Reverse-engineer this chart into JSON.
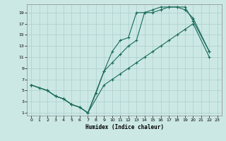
{
  "xlabel": "Humidex (Indice chaleur)",
  "bg_color": "#cce8e5",
  "grid_color": "#aacfcc",
  "line_color": "#1a6b5a",
  "xlim": [
    -0.5,
    23.5
  ],
  "ylim": [
    0.5,
    20.5
  ],
  "xticks": [
    0,
    1,
    2,
    3,
    4,
    5,
    6,
    7,
    8,
    9,
    10,
    11,
    12,
    13,
    14,
    15,
    16,
    17,
    18,
    19,
    20,
    21,
    22,
    23
  ],
  "yticks": [
    1,
    3,
    5,
    7,
    9,
    11,
    13,
    15,
    17,
    19
  ],
  "line1_x": [
    0,
    1,
    2,
    3,
    4,
    5,
    6,
    7,
    8,
    9,
    10,
    11,
    12,
    13,
    14,
    15,
    16,
    17,
    18,
    19,
    20,
    22
  ],
  "line1_y": [
    6,
    5.5,
    5,
    4,
    3.5,
    2.5,
    2,
    1,
    4.5,
    8.5,
    12,
    14,
    14.5,
    19,
    19,
    19.5,
    20,
    20,
    20,
    19.5,
    18,
    12
  ],
  "line2_x": [
    0,
    2,
    3,
    4,
    5,
    6,
    7,
    9,
    10,
    11,
    12,
    13,
    14,
    15,
    16,
    17,
    18,
    19,
    20,
    22
  ],
  "line2_y": [
    6,
    5,
    4,
    3.5,
    2.5,
    2,
    1,
    8.5,
    10,
    11.5,
    13,
    14,
    19,
    19,
    19.5,
    20,
    20,
    20,
    17.5,
    12
  ],
  "line3_x": [
    0,
    2,
    3,
    4,
    5,
    6,
    7,
    9,
    10,
    11,
    12,
    13,
    14,
    15,
    16,
    17,
    18,
    19,
    20,
    22
  ],
  "line3_y": [
    6,
    5,
    4,
    3.5,
    2.5,
    2,
    1,
    6,
    7,
    8,
    9,
    10,
    11,
    12,
    13,
    14,
    15,
    16,
    17,
    11
  ]
}
